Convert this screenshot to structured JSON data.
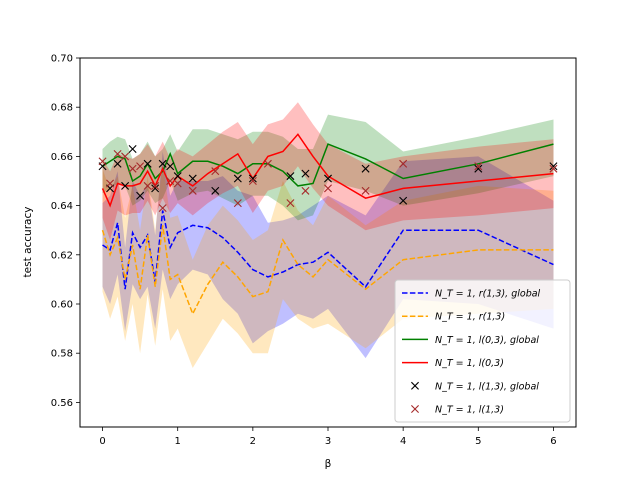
{
  "chart_data": {
    "type": "line",
    "xlabel": "β",
    "ylabel": "test accuracy",
    "xlim": [
      -0.3,
      6.3
    ],
    "ylim": [
      0.55,
      0.7
    ],
    "xticks": [
      0,
      1,
      2,
      3,
      4,
      5,
      6
    ],
    "yticks": [
      0.56,
      0.58,
      0.6,
      0.62,
      0.64,
      0.66,
      0.68,
      0.7
    ],
    "xtick_labels": [
      "0",
      "1",
      "2",
      "3",
      "4",
      "5",
      "6"
    ],
    "ytick_labels": [
      "0.56",
      "0.58",
      "0.60",
      "0.62",
      "0.64",
      "0.66",
      "0.68",
      "0.70"
    ],
    "legend_position": "lower-right",
    "series": [
      {
        "name": "N_T=1, r(1,3), global",
        "legend_label": "N_T = 1, r(1,3), global",
        "style": "dashed",
        "color": "#0000ff",
        "band_color": "#0000ff",
        "band_opacity": 0.25,
        "x": [
          0,
          0.1,
          0.2,
          0.3,
          0.4,
          0.5,
          0.6,
          0.7,
          0.8,
          0.9,
          1.0,
          1.2,
          1.4,
          1.6,
          1.8,
          2.0,
          2.2,
          2.4,
          2.6,
          2.8,
          3.0,
          3.5,
          4.0,
          5.0,
          6.0
        ],
        "y": [
          0.624,
          0.622,
          0.633,
          0.606,
          0.629,
          0.623,
          0.628,
          0.609,
          0.638,
          0.623,
          0.629,
          0.632,
          0.631,
          0.627,
          0.621,
          0.614,
          0.611,
          0.613,
          0.616,
          0.617,
          0.621,
          0.607,
          0.63,
          0.63,
          0.616
        ],
        "lower": [
          0.607,
          0.6,
          0.612,
          0.589,
          0.608,
          0.602,
          0.607,
          0.59,
          0.614,
          0.602,
          0.608,
          0.614,
          0.612,
          0.602,
          0.596,
          0.584,
          0.589,
          0.592,
          0.596,
          0.594,
          0.598,
          0.578,
          0.602,
          0.6,
          0.59
        ],
        "upper": [
          0.641,
          0.644,
          0.654,
          0.623,
          0.65,
          0.644,
          0.649,
          0.628,
          0.662,
          0.644,
          0.65,
          0.65,
          0.65,
          0.652,
          0.646,
          0.644,
          0.633,
          0.634,
          0.636,
          0.64,
          0.644,
          0.636,
          0.658,
          0.66,
          0.642
        ]
      },
      {
        "name": "N_T=1, r(1,3)",
        "legend_label": "N_T = 1, r(1,3)",
        "style": "dashed",
        "color": "#ffa500",
        "band_color": "#ffa500",
        "band_opacity": 0.25,
        "x": [
          0,
          0.1,
          0.2,
          0.3,
          0.4,
          0.5,
          0.6,
          0.7,
          0.8,
          0.9,
          1.0,
          1.2,
          1.4,
          1.6,
          1.8,
          2.0,
          2.2,
          2.4,
          2.6,
          2.8,
          3.0,
          3.5,
          4.0,
          5.0,
          6.0
        ],
        "y": [
          0.63,
          0.62,
          0.627,
          0.61,
          0.624,
          0.606,
          0.628,
          0.607,
          0.632,
          0.61,
          0.612,
          0.596,
          0.608,
          0.617,
          0.611,
          0.603,
          0.605,
          0.626,
          0.616,
          0.611,
          0.618,
          0.606,
          0.618,
          0.622,
          0.622
        ],
        "lower": [
          0.605,
          0.594,
          0.603,
          0.585,
          0.6,
          0.58,
          0.604,
          0.583,
          0.606,
          0.585,
          0.59,
          0.574,
          0.584,
          0.594,
          0.588,
          0.58,
          0.58,
          0.602,
          0.594,
          0.59,
          0.592,
          0.582,
          0.594,
          0.596,
          0.598
        ],
        "upper": [
          0.655,
          0.646,
          0.652,
          0.635,
          0.648,
          0.63,
          0.652,
          0.63,
          0.658,
          0.635,
          0.636,
          0.618,
          0.632,
          0.64,
          0.634,
          0.626,
          0.63,
          0.65,
          0.638,
          0.632,
          0.644,
          0.632,
          0.642,
          0.648,
          0.646
        ]
      },
      {
        "name": "N_T=1, l(0,3), global",
        "legend_label": "N_T = 1, l(0,3), global",
        "style": "solid",
        "color": "#008000",
        "band_color": "#008000",
        "band_opacity": 0.25,
        "x": [
          0,
          0.1,
          0.2,
          0.3,
          0.4,
          0.5,
          0.6,
          0.7,
          0.8,
          0.9,
          1.0,
          1.2,
          1.4,
          1.6,
          1.8,
          2.0,
          2.2,
          2.4,
          2.6,
          2.8,
          3.0,
          3.5,
          4.0,
          5.0,
          6.0
        ],
        "y": [
          0.656,
          0.658,
          0.66,
          0.659,
          0.65,
          0.652,
          0.657,
          0.651,
          0.654,
          0.661,
          0.653,
          0.658,
          0.658,
          0.656,
          0.653,
          0.657,
          0.657,
          0.654,
          0.648,
          0.649,
          0.665,
          0.659,
          0.651,
          0.657,
          0.665
        ],
        "lower": [
          0.645,
          0.647,
          0.649,
          0.648,
          0.64,
          0.642,
          0.646,
          0.641,
          0.643,
          0.65,
          0.642,
          0.645,
          0.646,
          0.643,
          0.64,
          0.644,
          0.644,
          0.64,
          0.634,
          0.636,
          0.65,
          0.646,
          0.64,
          0.645,
          0.652
        ],
        "upper": [
          0.663,
          0.666,
          0.668,
          0.667,
          0.659,
          0.661,
          0.666,
          0.66,
          0.663,
          0.669,
          0.662,
          0.671,
          0.671,
          0.669,
          0.667,
          0.67,
          0.67,
          0.668,
          0.663,
          0.663,
          0.677,
          0.674,
          0.662,
          0.668,
          0.675
        ]
      },
      {
        "name": "N_T=1, l(0,3)",
        "legend_label": "N_T = 1, l(0,3)",
        "style": "solid",
        "color": "#ff0000",
        "band_color": "#ff0000",
        "band_opacity": 0.25,
        "x": [
          0,
          0.1,
          0.2,
          0.3,
          0.4,
          0.5,
          0.6,
          0.7,
          0.8,
          0.9,
          1.0,
          1.2,
          1.4,
          1.6,
          1.8,
          2.0,
          2.2,
          2.4,
          2.6,
          2.8,
          3.0,
          3.5,
          4.0,
          5.0,
          6.0
        ],
        "y": [
          0.647,
          0.64,
          0.649,
          0.648,
          0.648,
          0.649,
          0.654,
          0.648,
          0.655,
          0.648,
          0.652,
          0.648,
          0.653,
          0.657,
          0.661,
          0.651,
          0.66,
          0.662,
          0.669,
          0.66,
          0.652,
          0.643,
          0.647,
          0.65,
          0.653
        ],
        "lower": [
          0.635,
          0.626,
          0.638,
          0.636,
          0.637,
          0.637,
          0.642,
          0.636,
          0.643,
          0.637,
          0.641,
          0.636,
          0.641,
          0.645,
          0.648,
          0.637,
          0.646,
          0.648,
          0.656,
          0.647,
          0.64,
          0.63,
          0.634,
          0.636,
          0.639
        ],
        "upper": [
          0.659,
          0.654,
          0.661,
          0.66,
          0.659,
          0.661,
          0.665,
          0.66,
          0.666,
          0.659,
          0.663,
          0.66,
          0.665,
          0.67,
          0.674,
          0.665,
          0.673,
          0.675,
          0.682,
          0.673,
          0.665,
          0.657,
          0.66,
          0.664,
          0.667
        ]
      }
    ],
    "scatter": [
      {
        "name": "N_T=1, l(1,3), global",
        "legend_label": "N_T = 1, l(1,3), global",
        "marker": "x",
        "color": "#000000",
        "x": [
          0,
          0.1,
          0.2,
          0.3,
          0.4,
          0.5,
          0.6,
          0.7,
          0.8,
          0.9,
          1.0,
          1.2,
          1.5,
          1.8,
          2.0,
          2.5,
          2.7,
          3.0,
          3.5,
          4.0,
          5.0,
          6.0
        ],
        "y": [
          0.656,
          0.647,
          0.657,
          0.648,
          0.663,
          0.644,
          0.657,
          0.647,
          0.657,
          0.656,
          0.652,
          0.651,
          0.646,
          0.651,
          0.651,
          0.652,
          0.653,
          0.651,
          0.655,
          0.642,
          0.655,
          0.656
        ]
      },
      {
        "name": "N_T=1, l(1,3)",
        "legend_label": "N_T = 1, l(1,3)",
        "marker": "x",
        "color": "#a52a2a",
        "x": [
          0,
          0.1,
          0.2,
          0.3,
          0.4,
          0.5,
          0.6,
          0.7,
          0.8,
          0.9,
          1.0,
          1.2,
          1.5,
          1.8,
          2.0,
          2.2,
          2.5,
          2.7,
          3.0,
          3.5,
          4.0,
          5.0,
          6.0
        ],
        "y": [
          0.658,
          0.649,
          0.661,
          0.66,
          0.655,
          0.656,
          0.648,
          0.648,
          0.639,
          0.65,
          0.649,
          0.646,
          0.654,
          0.641,
          0.65,
          0.657,
          0.641,
          0.646,
          0.647,
          0.646,
          0.657,
          0.656,
          0.655
        ]
      }
    ]
  }
}
